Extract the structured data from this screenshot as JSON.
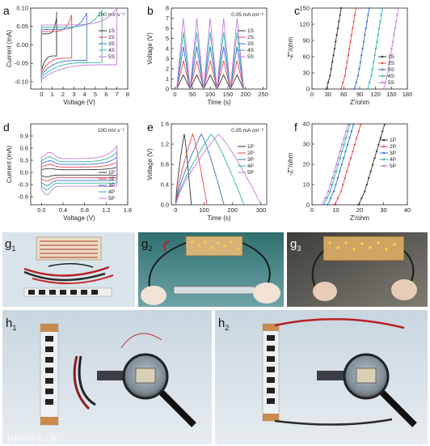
{
  "figure": {
    "panel_labels": [
      "a",
      "b",
      "c",
      "d",
      "e",
      "f"
    ],
    "photo_labels": {
      "g1": {
        "main": "g",
        "sub": "1"
      },
      "g2": {
        "main": "g",
        "sub": "2"
      },
      "g3": {
        "main": "g",
        "sub": "3"
      },
      "h1": {
        "main": "h",
        "sub": "1"
      },
      "h2": {
        "main": "h",
        "sub": "2"
      }
    },
    "watermark": "材料科学与工程"
  },
  "chart_data": [
    {
      "id": "a",
      "type": "line",
      "xlabel": "Voltage (V)",
      "ylabel": "Current (mA)",
      "xlim": [
        -1,
        8
      ],
      "ylim": [
        -0.12,
        0.1
      ],
      "xticks": [
        0,
        1,
        2,
        3,
        4,
        5,
        6,
        7,
        8
      ],
      "yticks": [
        -0.1,
        -0.05,
        0.0,
        0.05,
        0.1
      ],
      "ytick_labels": [
        "-0.10",
        "-0.05",
        "0.00",
        "0.05",
        "0.10"
      ],
      "annotation": "100 mV s⁻¹",
      "legend": [
        "1S",
        "2S",
        "3S",
        "4S",
        "5S"
      ],
      "legend_pos": "right",
      "colors": [
        "#333333",
        "#e8474b",
        "#3a6fcf",
        "#2bb5a6",
        "#c678dd"
      ],
      "vmax": [
        1.4,
        2.8,
        4.2,
        5.6,
        7.0
      ]
    },
    {
      "id": "b",
      "type": "line",
      "xlabel": "Time (s)",
      "ylabel": "Voltage (V)",
      "xlim": [
        -10,
        260
      ],
      "ylim": [
        0,
        8
      ],
      "xticks": [
        0,
        50,
        100,
        150,
        200,
        250
      ],
      "yticks": [
        0,
        1,
        2,
        3,
        4,
        5,
        6,
        7,
        8
      ],
      "annotation": "0.05 mA cm⁻²",
      "legend": [
        "1S",
        "2S",
        "3S",
        "4S",
        "5S"
      ],
      "legend_pos": "right",
      "colors": [
        "#333333",
        "#e8474b",
        "#3a6fcf",
        "#2bb5a6",
        "#c678dd"
      ],
      "vmax": [
        1.4,
        2.8,
        4.2,
        5.6,
        7.0
      ],
      "period": 38,
      "t0": 5,
      "cycles": 5
    },
    {
      "id": "c",
      "type": "scatter",
      "xlabel": "Z'/ohm",
      "ylabel": "-Z''/ohm",
      "xlim": [
        0,
        180
      ],
      "ylim": [
        0,
        150
      ],
      "xticks": [
        0,
        30,
        60,
        90,
        120,
        150,
        180
      ],
      "yticks": [
        0,
        30,
        60,
        90,
        120,
        150
      ],
      "legend": [
        "1S",
        "2S",
        "3S",
        "4S",
        "5S"
      ],
      "legend_pos": "lower-right",
      "colors": [
        "#333333",
        "#e8474b",
        "#3a6fcf",
        "#2bb5a6",
        "#c678dd"
      ],
      "x0": [
        27,
        55,
        80,
        105,
        135
      ],
      "slope": 6
    },
    {
      "id": "d",
      "type": "line",
      "xlabel": "Voltage (V)",
      "ylabel": "Current (mA)",
      "xlim": [
        -0.2,
        1.6
      ],
      "ylim": [
        -0.8,
        1.2
      ],
      "xticks": [
        0.0,
        0.4,
        0.8,
        1.2,
        1.6
      ],
      "yticks": [
        -0.6,
        -0.3,
        0.0,
        0.3,
        0.6,
        0.9
      ],
      "xtick_labels": [
        "0.0",
        "0.4",
        "0.8",
        "1.2",
        "1.6"
      ],
      "ytick_labels": [
        "-0.6",
        "-0.3",
        "0.0",
        "0.3",
        "0.6",
        "0.9"
      ],
      "annotation": "100 mV s⁻¹",
      "legend": [
        "1P",
        "2P",
        "3P",
        "4P",
        "5P"
      ],
      "legend_pos": "lower-right",
      "colors": [
        "#333333",
        "#e8474b",
        "#3a6fcf",
        "#2bb5a6",
        "#c678dd"
      ],
      "scale": [
        0.12,
        0.24,
        0.36,
        0.48,
        0.62
      ]
    },
    {
      "id": "e",
      "type": "line",
      "xlabel": "Time (s)",
      "ylabel": "Voltage (V)",
      "xlim": [
        -15,
        320
      ],
      "ylim": [
        0,
        1.6
      ],
      "xticks": [
        0,
        100,
        200,
        300
      ],
      "yticks": [
        0.0,
        0.4,
        0.8,
        1.2,
        1.6
      ],
      "ytick_labels": [
        "0.0",
        "0.4",
        "0.8",
        "1.2",
        "1.6"
      ],
      "annotation": "0.05 mA cm⁻²",
      "legend": [
        "1P",
        "2P",
        "3P",
        "4P",
        "5P"
      ],
      "legend_pos": "right",
      "colors": [
        "#333333",
        "#e8474b",
        "#3a6fcf",
        "#2bb5a6",
        "#c678dd"
      ],
      "t_charge": [
        30,
        60,
        90,
        125,
        150
      ],
      "t_end": [
        55,
        110,
        170,
        240,
        300
      ]
    },
    {
      "id": "f",
      "type": "scatter",
      "xlabel": "Z'/ohm",
      "ylabel": "-Z''/ohm",
      "xlim": [
        0,
        40
      ],
      "ylim": [
        0,
        40
      ],
      "xticks": [
        0,
        10,
        20,
        30,
        40
      ],
      "yticks": [
        0,
        10,
        20,
        30,
        40
      ],
      "legend": [
        "1P",
        "2P",
        "3P",
        "4P",
        "5P"
      ],
      "legend_pos": "right",
      "colors": [
        "#333333",
        "#e8474b",
        "#3a6fcf",
        "#2bb5a6",
        "#c678dd"
      ],
      "x0": [
        19.5,
        9.5,
        6.5,
        5,
        4.2
      ],
      "slope": 4
    }
  ]
}
